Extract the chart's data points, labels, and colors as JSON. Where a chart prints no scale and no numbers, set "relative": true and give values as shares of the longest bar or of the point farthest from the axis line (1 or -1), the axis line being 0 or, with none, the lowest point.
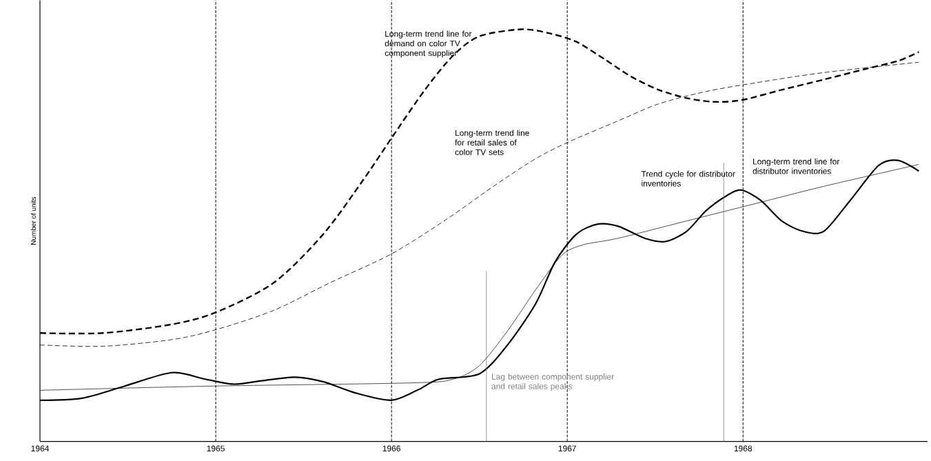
{
  "chart_data": {
    "type": "line",
    "relative": true,
    "ylabel": "Number of units",
    "xlim": [
      1964,
      1969.05
    ],
    "xticks": [
      1964,
      1965,
      1966,
      1967,
      1968
    ],
    "series": [
      {
        "color": "#000000",
        "line_style": "dashed",
        "x": [
          1964.0,
          1964.36,
          1964.75,
          1965.0,
          1965.33,
          1965.61,
          1965.84,
          1966.0,
          1966.19,
          1966.35,
          1966.5,
          1966.74,
          1966.9,
          1967.05,
          1967.21,
          1967.36,
          1967.52,
          1967.68,
          1967.83,
          1967.99,
          1968.22,
          1968.46,
          1968.69,
          1968.88,
          1969.0
        ],
        "values": [
          0.263,
          0.263,
          0.284,
          0.313,
          0.385,
          0.502,
          0.635,
          0.736,
          0.853,
          0.936,
          0.983,
          1.0,
          0.99,
          0.97,
          0.928,
          0.886,
          0.853,
          0.833,
          0.824,
          0.828,
          0.853,
          0.878,
          0.903,
          0.923,
          0.945
        ]
      },
      {
        "color": "#000000",
        "line_style": "dashed",
        "x": [
          1964.0,
          1964.36,
          1964.75,
          1965.0,
          1965.33,
          1965.65,
          1966.0,
          1966.31,
          1966.58,
          1966.82,
          1967.01,
          1967.29,
          1967.52,
          1967.79,
          1968.07,
          1968.46,
          1969.0
        ],
        "values": [
          0.234,
          0.231,
          0.247,
          0.271,
          0.318,
          0.385,
          0.455,
          0.538,
          0.619,
          0.686,
          0.727,
          0.778,
          0.819,
          0.849,
          0.87,
          0.895,
          0.92
        ]
      },
      {
        "color": "#000000",
        "line_style": "solid",
        "x": [
          1964.0,
          1964.94,
          1966.11,
          1966.35,
          1966.5,
          1966.66,
          1966.82,
          1966.97,
          1967.09,
          1967.29,
          1967.68,
          1968.07,
          1968.46,
          1969.0
        ],
        "values": [
          0.124,
          0.134,
          0.142,
          0.151,
          0.184,
          0.268,
          0.368,
          0.452,
          0.477,
          0.493,
          0.535,
          0.577,
          0.619,
          0.672
        ]
      },
      {
        "color": "#000000",
        "line_style": "solid",
        "x": [
          1964.0,
          1964.24,
          1964.48,
          1964.75,
          1964.94,
          1965.1,
          1965.26,
          1965.45,
          1965.61,
          1965.8,
          1966.0,
          1966.15,
          1966.27,
          1966.5,
          1966.66,
          1966.82,
          1966.93,
          1967.05,
          1967.17,
          1967.29,
          1967.44,
          1967.56,
          1967.68,
          1967.79,
          1967.91,
          1967.99,
          1968.1,
          1968.22,
          1968.34,
          1968.46,
          1968.61,
          1968.77,
          1968.88,
          1969.0
        ],
        "values": [
          0.1,
          0.105,
          0.134,
          0.167,
          0.151,
          0.139,
          0.147,
          0.156,
          0.145,
          0.117,
          0.1,
          0.125,
          0.151,
          0.164,
          0.234,
          0.334,
          0.435,
          0.502,
          0.527,
          0.522,
          0.493,
          0.485,
          0.51,
          0.56,
          0.597,
          0.61,
          0.585,
          0.535,
          0.51,
          0.51,
          0.585,
          0.669,
          0.682,
          0.656
        ]
      },
      {
        "color": "#808080",
        "line_style": "solid",
        "x": [
          1966.54,
          1966.54
        ],
        "values": [
          0,
          0.413
        ]
      },
      {
        "color": "#808080",
        "line_style": "solid",
        "x": [
          1967.89,
          1967.89
        ],
        "values": [
          0,
          0.677
        ]
      }
    ],
    "ref_lines": [
      {
        "axis": "x",
        "value": 1965,
        "color": "#000000",
        "line_style": "dashed"
      },
      {
        "axis": "x",
        "value": 1966,
        "color": "#000000",
        "line_style": "dashed"
      },
      {
        "axis": "x",
        "value": 1967,
        "color": "#000000",
        "line_style": "dashed"
      },
      {
        "axis": "x",
        "value": 1968,
        "color": "#000000",
        "line_style": "dashed"
      }
    ],
    "annotations": [
      {
        "text": "Long-term trend line for demand on color TV component supplier",
        "x": 1966.35,
        "y": 0.936
      },
      {
        "text": "Long-term trend line for retail sales of color TV sets",
        "x": 1966.82,
        "y": 0.686
      },
      {
        "text": "Long-term trend line for distributor inventories",
        "x": 1968.6,
        "y": 0.64
      },
      {
        "text": "Trend cycle for distributor inventories",
        "x": 1967.99,
        "y": 0.61
      },
      {
        "text": "Lag between component supplier and retail sales peaks",
        "x": 1966.54,
        "y": 0.16
      }
    ],
    "grid": false
  }
}
